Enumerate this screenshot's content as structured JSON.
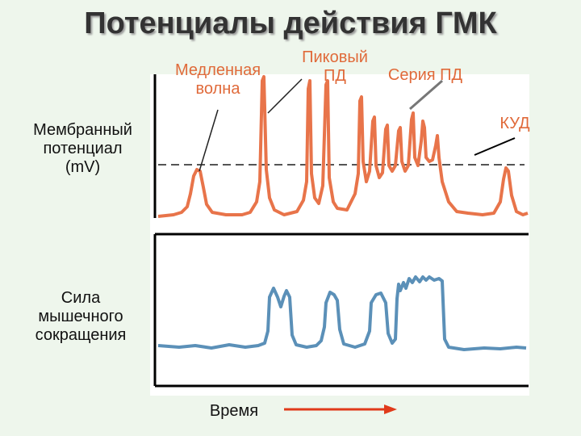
{
  "title": "Потенциалы действия ГМК",
  "labels": {
    "slow_wave_1": "Медленная",
    "slow_wave_2": "волна",
    "spike_1": "Пиковый",
    "spike_2": "ПД",
    "series": "Серия ПД",
    "kud": "КУД",
    "membrane_1": "Мембранный",
    "membrane_2": "потенциал",
    "membrane_3": "(mV)",
    "force_1": "Сила",
    "force_2": "мышечного",
    "force_3": "сокращения",
    "time": "Время"
  },
  "colors": {
    "membrane_trace": "#e8744a",
    "force_trace": "#5b90b8",
    "label_orange": "#e06a3a",
    "time_arrow": "#e03a1a",
    "axis": "#000000",
    "threshold": "#555555"
  }
}
